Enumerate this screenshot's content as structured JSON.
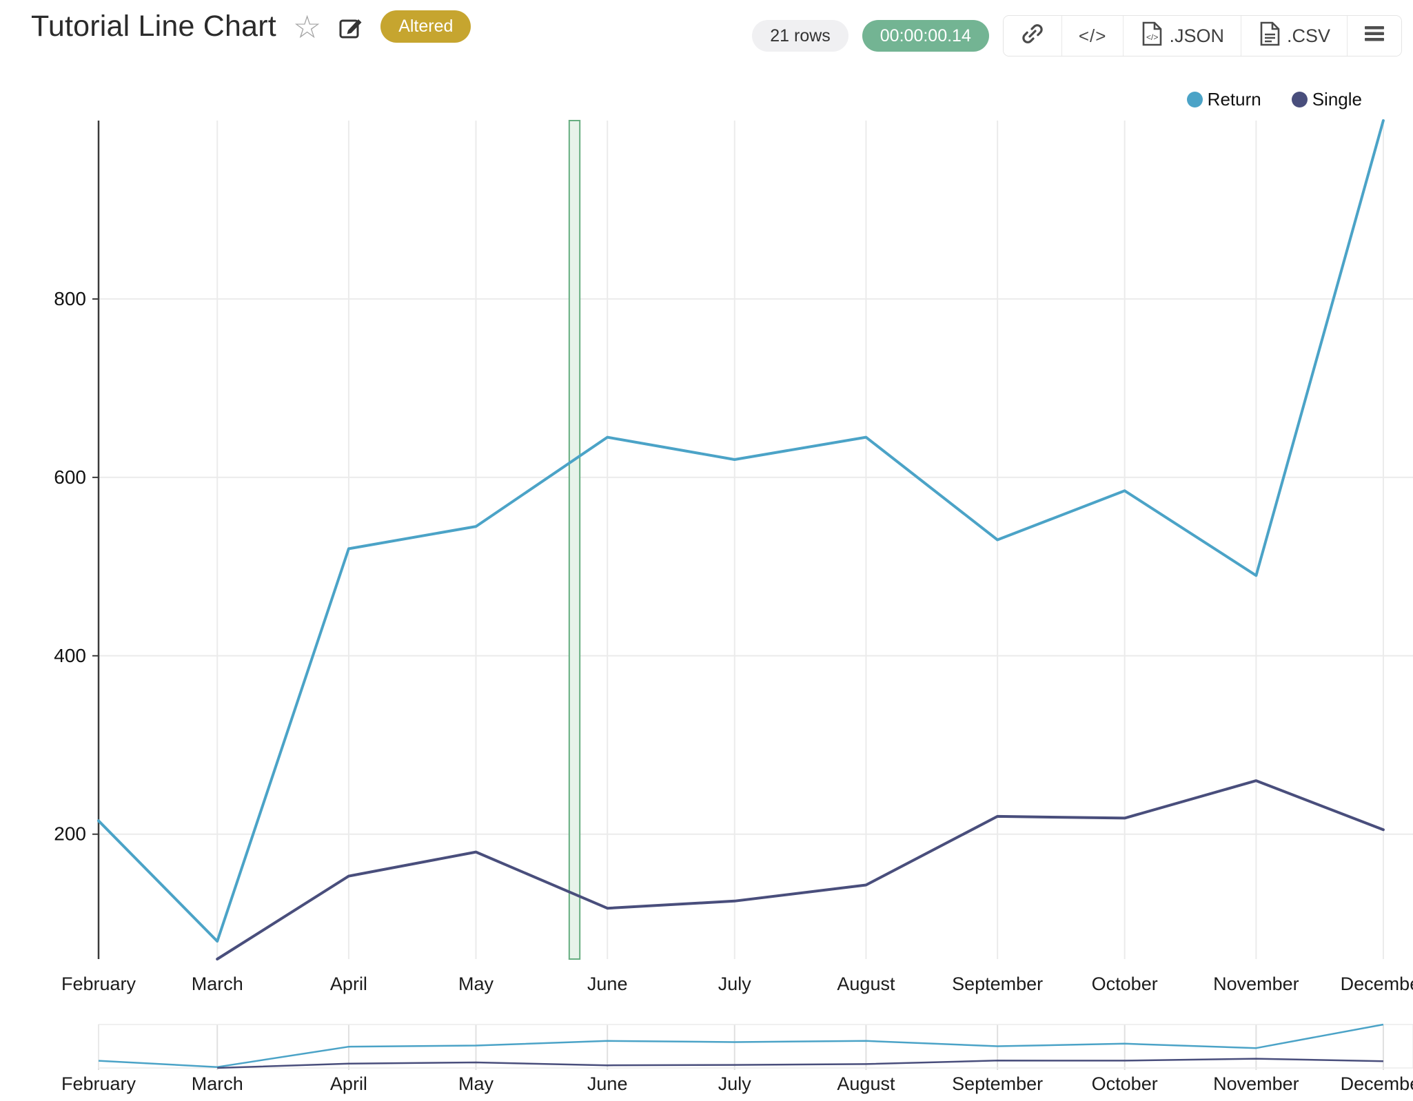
{
  "header": {
    "title": "Tutorial Line Chart",
    "altered_badge": "Altered",
    "altered_color": "#c6a52f",
    "rows_badge": "21 rows",
    "timer": "00:00:00.14",
    "timer_color": "#73b493"
  },
  "toolbar": {
    "export_json_label": ".JSON",
    "export_csv_label": ".CSV"
  },
  "chart_data": {
    "type": "line",
    "title": "Tutorial Line Chart",
    "categories": [
      "February",
      "March",
      "April",
      "May",
      "June",
      "July",
      "August",
      "September",
      "October",
      "November",
      "December"
    ],
    "month_day_offsets": [
      0,
      28,
      59,
      89,
      120,
      150,
      181,
      212,
      242,
      273,
      303
    ],
    "series": [
      {
        "name": "Return",
        "color": "#4ba3c7",
        "values": [
          215,
          80,
          520,
          545,
          645,
          620,
          645,
          530,
          585,
          490,
          1000
        ]
      },
      {
        "name": "Single",
        "color": "#494e7c",
        "values": [
          null,
          60,
          153,
          180,
          117,
          125,
          143,
          220,
          218,
          260,
          205
        ]
      }
    ],
    "yticks": [
      200,
      400,
      600,
      800
    ],
    "ylim": [
      60,
      1000
    ],
    "x_window_days": [
      0,
      310
    ],
    "grid": true,
    "legend_position": "top-right",
    "rangeslider": true,
    "highlight_band": {
      "from_day": 111,
      "to_day": 113.5,
      "fill": "#e8f3ea",
      "border": "#67ae81"
    },
    "colors": {
      "gridline": "#ebebeb",
      "axis": "#3a3a3a",
      "tick_text": "#1c1c1c"
    }
  }
}
